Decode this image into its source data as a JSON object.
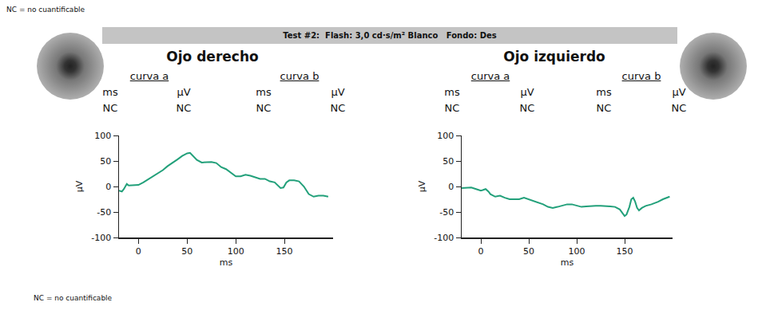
{
  "notes": [
    "NC = no cuantificable",
    "NC = no cuantificable"
  ],
  "test": "Test #2:  Flash: 3,0 cd·s/m² Blanco   Fondo: Des",
  "eyes": [
    {
      "title": "Ojo derecho",
      "measures": [
        {
          "curve": "curva a",
          "units": [
            "ms",
            "µV"
          ],
          "values": [
            "NC",
            "NC"
          ]
        },
        {
          "curve": "curva b",
          "units": [
            "ms",
            "µV"
          ],
          "values": [
            "NC",
            "NC"
          ]
        }
      ]
    },
    {
      "title": "Ojo izquierdo",
      "measures": [
        {
          "curve": "curva a",
          "units": [
            "ms",
            "µV"
          ],
          "values": [
            "NC",
            "NC"
          ]
        },
        {
          "curve": "curva b",
          "units": [
            "ms",
            "µV"
          ],
          "values": [
            "NC",
            "NC"
          ]
        }
      ]
    }
  ],
  "chart_data": [
    {
      "type": "line",
      "x_label": "ms",
      "y_label": "µV",
      "color": "#22a07a",
      "xlim": [
        -20,
        200
      ],
      "ylim": [
        -100,
        100
      ],
      "xticks": [
        0,
        50,
        100,
        150
      ],
      "yticks": [
        -100,
        -50,
        0,
        50,
        100
      ],
      "x": [
        -20,
        -17,
        -15,
        -12,
        -10,
        -5,
        0,
        5,
        10,
        15,
        20,
        25,
        30,
        35,
        40,
        45,
        50,
        53,
        56,
        60,
        65,
        70,
        75,
        80,
        85,
        90,
        95,
        100,
        105,
        110,
        115,
        120,
        125,
        130,
        135,
        140,
        143,
        146,
        149,
        152,
        155,
        160,
        165,
        170,
        175,
        180,
        185,
        190,
        195
      ],
      "values": [
        -8,
        -10,
        -5,
        5,
        2,
        2,
        3,
        8,
        14,
        20,
        25,
        32,
        40,
        46,
        53,
        60,
        65,
        66,
        60,
        52,
        47,
        47,
        48,
        46,
        38,
        34,
        27,
        20,
        20,
        23,
        21,
        18,
        15,
        15,
        10,
        8,
        2,
        -3,
        -2,
        8,
        12,
        12,
        10,
        0,
        -15,
        -20,
        -18,
        -18,
        -20
      ]
    },
    {
      "type": "line",
      "x_label": "ms",
      "y_label": "µV",
      "color": "#22a07a",
      "xlim": [
        -20,
        200
      ],
      "ylim": [
        -100,
        100
      ],
      "xticks": [
        0,
        50,
        100,
        150
      ],
      "yticks": [
        -100,
        -50,
        0,
        50,
        100
      ],
      "x": [
        -20,
        -15,
        -10,
        -5,
        0,
        2,
        5,
        8,
        10,
        15,
        20,
        25,
        30,
        35,
        40,
        45,
        50,
        55,
        60,
        65,
        70,
        75,
        80,
        85,
        90,
        95,
        100,
        105,
        110,
        115,
        120,
        125,
        130,
        135,
        140,
        145,
        150,
        152,
        155,
        157,
        159,
        161,
        163,
        165,
        168,
        172,
        178,
        185,
        190,
        197
      ],
      "values": [
        -3,
        -2,
        -2,
        -5,
        -8,
        -7,
        -5,
        -10,
        -15,
        -20,
        -18,
        -22,
        -25,
        -25,
        -25,
        -22,
        -25,
        -28,
        -32,
        -35,
        -40,
        -42,
        -40,
        -37,
        -35,
        -35,
        -38,
        -40,
        -39,
        -38,
        -38,
        -38,
        -38,
        -39,
        -40,
        -45,
        -58,
        -55,
        -40,
        -25,
        -22,
        -30,
        -42,
        -47,
        -42,
        -38,
        -35,
        -30,
        -25,
        -20
      ]
    }
  ]
}
